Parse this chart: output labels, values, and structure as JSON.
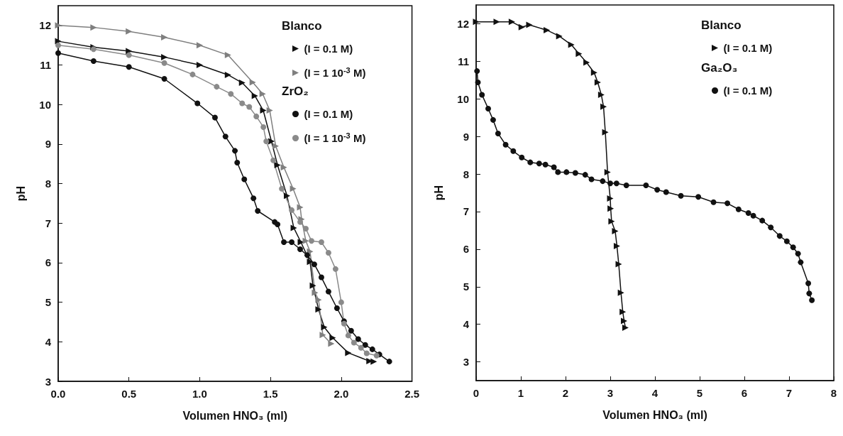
{
  "chart_data": [
    {
      "type": "line",
      "xlabel": "Volumen HNO₃ (ml)",
      "ylabel": "pH",
      "xlim": [
        0,
        2.5
      ],
      "ylim": [
        3,
        12.5
      ],
      "xticks": [
        {
          "value": 0,
          "label": "0.0"
        },
        {
          "value": 0.5,
          "label": "0.5"
        },
        {
          "value": 1,
          "label": "1.0"
        },
        {
          "value": 1.5,
          "label": "1.5"
        },
        {
          "value": 2,
          "label": "2.0"
        },
        {
          "value": 2.5,
          "label": "2.5"
        }
      ],
      "yticks": [
        3,
        4,
        5,
        6,
        7,
        8,
        9,
        10,
        11,
        12
      ],
      "grid": false,
      "legend": "top right",
      "line_style": "solid",
      "annotations": [
        "Blanco",
        "ZrO₂"
      ],
      "series": [
        {
          "name": "(I = 0.1 M)",
          "color": "#111111",
          "marker": "triangle",
          "x": [
            0,
            0.25,
            0.5,
            0.75,
            1.0,
            1.2,
            1.3,
            1.39,
            1.449,
            1.507,
            1.55,
            1.617,
            1.665,
            1.715,
            1.78,
            1.8,
            1.84,
            1.88,
            1.94,
            2.05,
            2.2,
            2.23
          ],
          "values": [
            11.6,
            11.45,
            11.35,
            11.2,
            11.0,
            10.75,
            10.55,
            10.22,
            9.85,
            9.07,
            8.47,
            7.69,
            6.88,
            6.52,
            6.02,
            5.42,
            4.82,
            4.37,
            4.1,
            3.72,
            3.51,
            3.5
          ]
        },
        {
          "name": "(I = 1 10$^{-3}$ M)",
          "color": "#7f7f7f",
          "marker": "triangle",
          "x": [
            0,
            0.25,
            0.5,
            0.75,
            1.0,
            1.2,
            1.375,
            1.445,
            1.495,
            1.537,
            1.595,
            1.66,
            1.71,
            1.72,
            1.75,
            1.78,
            1.815,
            1.84,
            1.87,
            1.93
          ],
          "values": [
            12.0,
            11.95,
            11.85,
            11.7,
            11.5,
            11.25,
            10.56,
            10.27,
            9.85,
            8.95,
            8.41,
            7.87,
            7.4,
            7.1,
            6.55,
            6.28,
            5.24,
            5.06,
            4.17,
            3.95
          ]
        },
        {
          "name": "(I = 0.1 M)",
          "color": "#111111",
          "marker": "circle",
          "x": [
            0,
            0.25,
            0.5,
            0.75,
            0.984,
            1.108,
            1.182,
            1.249,
            1.265,
            1.315,
            1.38,
            1.41,
            1.53,
            1.55,
            1.595,
            1.65,
            1.71,
            1.76,
            1.81,
            1.86,
            1.91,
            1.97,
            2.02,
            2.07,
            2.12,
            2.17,
            2.22,
            2.27,
            2.34
          ],
          "values": [
            11.3,
            11.1,
            10.95,
            10.65,
            10.03,
            9.67,
            9.19,
            8.83,
            8.53,
            8.11,
            7.63,
            7.31,
            7.03,
            6.97,
            6.52,
            6.52,
            6.34,
            6.19,
            5.96,
            5.63,
            5.27,
            4.85,
            4.52,
            4.28,
            4.07,
            3.92,
            3.81,
            3.68,
            3.5
          ]
        },
        {
          "name": "(I = 1 10$^{-3}$ M)",
          "color": "#8a8a8a",
          "marker": "circle",
          "x": [
            0,
            0.25,
            0.5,
            0.75,
            0.95,
            1.12,
            1.22,
            1.3,
            1.35,
            1.4,
            1.45,
            1.47,
            1.52,
            1.58,
            1.65,
            1.71,
            1.75,
            1.79,
            1.86,
            1.91,
            1.96,
            2.0,
            2.02,
            2.05,
            2.09,
            2.14,
            2.18,
            2.25
          ],
          "values": [
            11.5,
            11.4,
            11.25,
            11.05,
            10.76,
            10.45,
            10.27,
            10.03,
            9.94,
            9.7,
            9.43,
            9.07,
            8.59,
            7.87,
            7.33,
            7.03,
            6.86,
            6.55,
            6.52,
            6.25,
            5.84,
            5.0,
            4.46,
            4.16,
            3.98,
            3.85,
            3.71,
            3.65
          ]
        }
      ]
    },
    {
      "type": "line",
      "xlabel": "Volumen HNO₃ (ml)",
      "ylabel": "pH",
      "xlim": [
        0,
        8
      ],
      "ylim": [
        2.5,
        12.5
      ],
      "xticks": [
        0,
        1,
        2,
        3,
        4,
        5,
        6,
        7,
        8
      ],
      "yticks": [
        3,
        4,
        5,
        6,
        7,
        8,
        9,
        10,
        11,
        12
      ],
      "grid": false,
      "legend": "top right",
      "line_style": "solid",
      "annotations": [
        "Blanco",
        "Ga₂O₃"
      ],
      "series": [
        {
          "name": "(I = 0.1 M)",
          "color": "#111111",
          "marker": "triangle",
          "x": [
            0,
            0.46,
            0.8,
            1.02,
            1.19,
            1.58,
            1.86,
            2.13,
            2.3,
            2.47,
            2.64,
            2.72,
            2.8,
            2.85,
            2.89,
            2.94,
            3.0,
            3.01,
            3.03,
            3.11,
            3.15,
            3.19,
            3.24,
            3.28,
            3.31,
            3.34
          ],
          "values": [
            12.05,
            12.05,
            12.05,
            11.91,
            11.97,
            11.83,
            11.67,
            11.44,
            11.2,
            10.97,
            10.7,
            10.44,
            10.11,
            9.79,
            9.11,
            8.05,
            7.35,
            7.08,
            6.74,
            6.48,
            6.08,
            5.6,
            4.84,
            4.33,
            4.09,
            3.91
          ]
        },
        {
          "name": "(I = 0.1 M)",
          "color": "#111111",
          "marker": "circle",
          "x": [
            0.02,
            0.04,
            0.13,
            0.27,
            0.38,
            0.49,
            0.66,
            0.83,
            1.02,
            1.21,
            1.41,
            1.55,
            1.74,
            1.83,
            2.02,
            2.22,
            2.44,
            2.58,
            2.83,
            3.0,
            3.14,
            3.36,
            3.8,
            4.05,
            4.25,
            4.58,
            4.97,
            5.31,
            5.62,
            5.87,
            6.09,
            6.2,
            6.4,
            6.59,
            6.79,
            6.95,
            7.09,
            7.2,
            7.26,
            7.43,
            7.45,
            7.51
          ],
          "values": [
            10.74,
            10.44,
            10.11,
            9.74,
            9.44,
            9.08,
            8.78,
            8.61,
            8.44,
            8.31,
            8.28,
            8.25,
            8.18,
            8.05,
            8.05,
            8.03,
            7.98,
            7.86,
            7.81,
            7.75,
            7.75,
            7.7,
            7.7,
            7.58,
            7.52,
            7.42,
            7.39,
            7.25,
            7.22,
            7.06,
            6.96,
            6.89,
            6.76,
            6.58,
            6.35,
            6.21,
            6.05,
            5.88,
            5.65,
            5.09,
            4.82,
            4.64
          ]
        }
      ]
    }
  ]
}
